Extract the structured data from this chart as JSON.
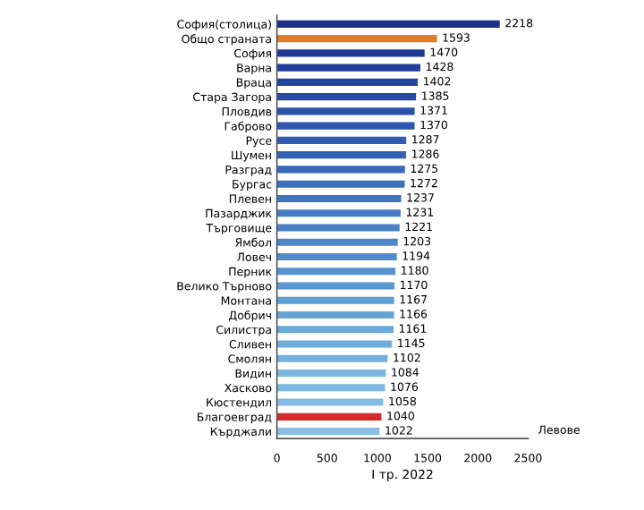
{
  "chart_data": {
    "type": "bar",
    "orientation": "horizontal",
    "xlabel": "I тр. 2022",
    "annotations": [
      "Левове"
    ],
    "categories": [
      "София(столица)",
      "Общо страната",
      "София",
      "Варна",
      "Враца",
      "Стара Загора",
      "Пловдив",
      "Габрово",
      "Русе",
      "Шумен",
      "Разград",
      "Бургас",
      "Плевен",
      "Пазарджик",
      "Търговище",
      "Ямбол",
      "Ловеч",
      "Перник",
      "Велико Търново",
      "Монтана",
      "Добрич",
      "Силистра",
      "Сливен",
      "Смолян",
      "Видин",
      "Хасково",
      "Кюстендил",
      "Благоевград",
      "Кърджали"
    ],
    "values": [
      2218,
      1593,
      1470,
      1428,
      1402,
      1385,
      1371,
      1370,
      1287,
      1286,
      1275,
      1272,
      1237,
      1231,
      1221,
      1203,
      1194,
      1180,
      1170,
      1167,
      1166,
      1161,
      1145,
      1102,
      1084,
      1076,
      1058,
      1040,
      1022
    ],
    "colors": [
      "#1c2f8a",
      "#e07b2a",
      "#1f3a94",
      "#22409a",
      "#2445a0",
      "#274ba5",
      "#2a51aa",
      "#2d57ae",
      "#305db2",
      "#3463b6",
      "#3869ba",
      "#3c6fbd",
      "#4075c0",
      "#447bc3",
      "#4881c6",
      "#4c87c9",
      "#518dcc",
      "#5693cf",
      "#5b99d2",
      "#609fd4",
      "#65a4d7",
      "#6aa9d9",
      "#6faddb",
      "#74b1dd",
      "#79b5df",
      "#7eb8e0",
      "#83bbe2",
      "#d42a2a",
      "#8ac0e4"
    ],
    "data_labels": true,
    "xlim": [
      0,
      2500
    ],
    "xticks": [
      0,
      500,
      1000,
      1500,
      2000,
      2500
    ],
    "grid": false,
    "legend": false
  }
}
